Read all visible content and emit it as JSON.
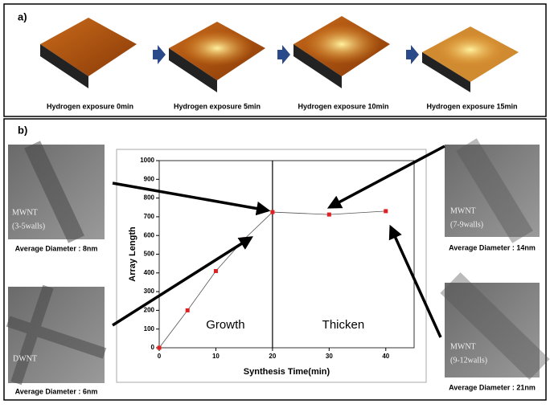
{
  "panel_a": {
    "label": "a)",
    "captions": [
      "Hydrogen exposure 0min",
      "Hydrogen exposure 5min",
      "Hydrogen exposure 10min",
      "Hydrogen exposure 15min"
    ]
  },
  "panel_b": {
    "label": "b)",
    "images": [
      {
        "name": "MWNT",
        "walls": "(3-5walls)",
        "caption": "Average Diameter : 8nm"
      },
      {
        "name": "DWNT",
        "caption": "Average Diameter : 6nm"
      },
      {
        "name": "MWNT",
        "walls": "(7-9walls)",
        "caption": "Average Diameter : 14nm"
      },
      {
        "name": "MWNT",
        "walls": "(9-12walls)",
        "caption": "Average Diameter : 21nm"
      }
    ]
  },
  "chart_data": {
    "type": "line",
    "xlabel": "Synthesis Time(min)",
    "ylabel": "Array Length",
    "x": [
      0,
      5,
      10,
      15,
      20,
      30,
      40
    ],
    "values": [
      0,
      200,
      410,
      580,
      725,
      712,
      730
    ],
    "color": "#e02020",
    "line_color": "#555555",
    "xlim": [
      0,
      45
    ],
    "ylim": [
      0,
      1000
    ],
    "xticks": [
      0,
      10,
      20,
      30,
      40
    ],
    "yticks": [
      0,
      100,
      200,
      300,
      400,
      500,
      600,
      700,
      800,
      900,
      1000
    ],
    "divider": 20,
    "annotations": [
      "Growth",
      "Thicken"
    ]
  }
}
